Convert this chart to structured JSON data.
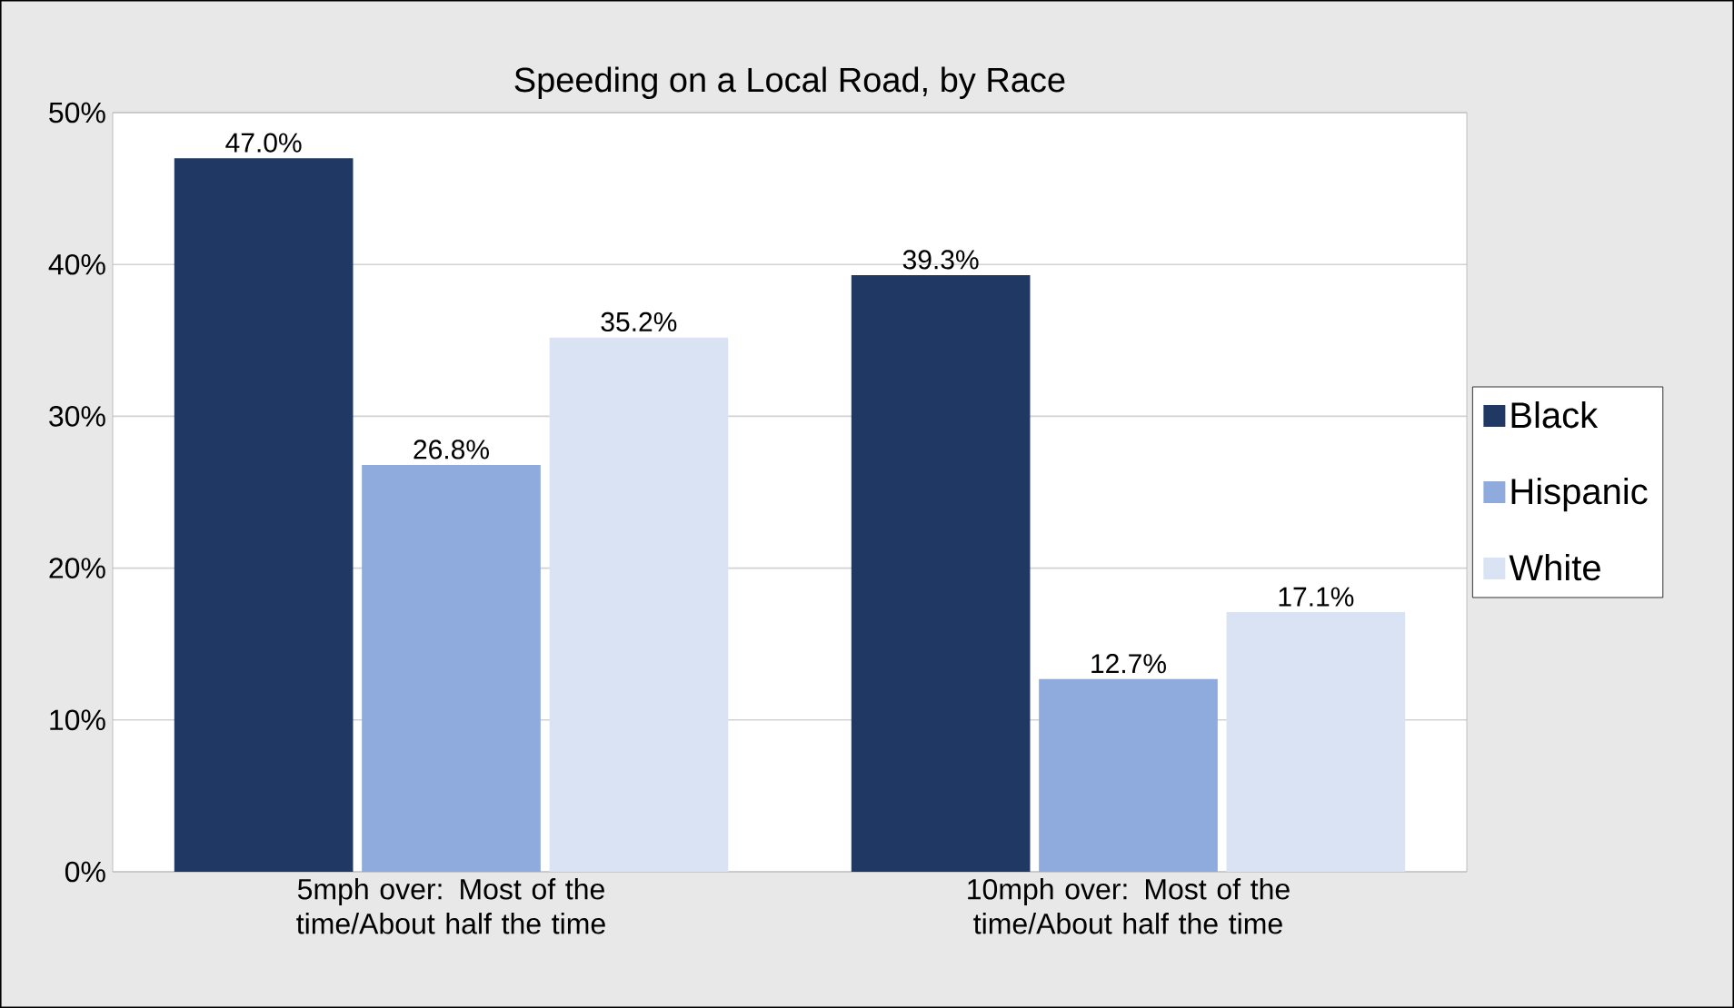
{
  "chart_data": {
    "type": "bar",
    "title": "Speeding on a Local Road, by Race",
    "categories": [
      "5mph over: Most of the time/About half the time",
      "10mph over: Most of the time/About half the time"
    ],
    "series": [
      {
        "name": "Black",
        "color": "#203864",
        "values": [
          47.0,
          39.3
        ],
        "value_labels": [
          "47.0%",
          "39.3%"
        ]
      },
      {
        "name": "Hispanic",
        "color": "#8faadc",
        "values": [
          26.8,
          12.7
        ],
        "value_labels": [
          "26.8%",
          "12.7%"
        ]
      },
      {
        "name": "White",
        "color": "#dae3f3",
        "values": [
          35.2,
          17.1
        ],
        "value_labels": [
          "35.2%",
          "17.1%"
        ]
      }
    ],
    "ylim": [
      0,
      50
    ],
    "yticks": [
      {
        "value": 0,
        "label": "0%"
      },
      {
        "value": 10,
        "label": "10%"
      },
      {
        "value": 20,
        "label": "20%"
      },
      {
        "value": 30,
        "label": "30%"
      },
      {
        "value": 40,
        "label": "40%"
      },
      {
        "value": 50,
        "label": "50%"
      }
    ],
    "grid": "y",
    "legend": "right"
  }
}
